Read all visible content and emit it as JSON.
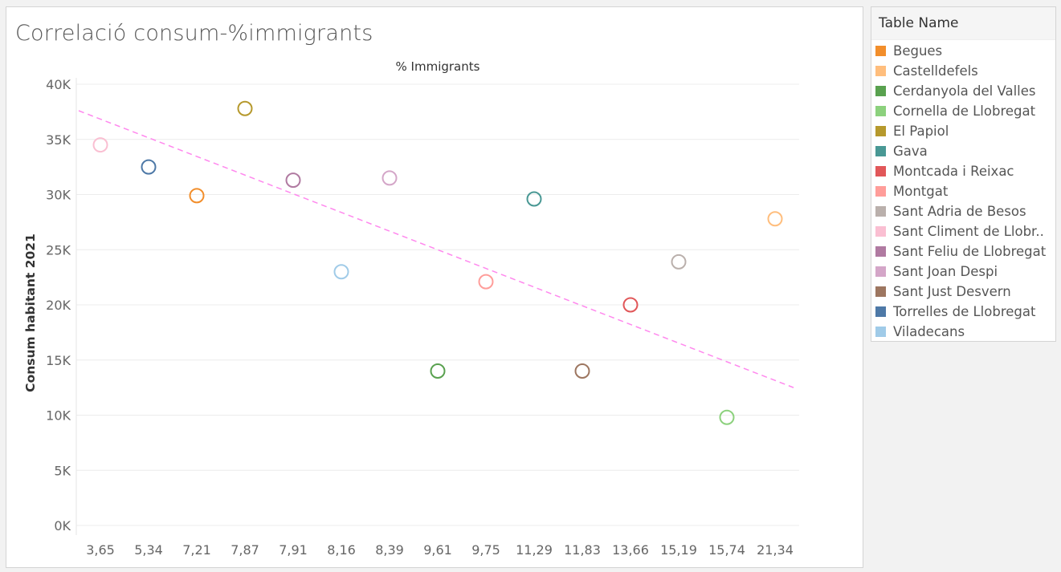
{
  "title": "Correlació consum-%immigrants",
  "legend": {
    "title": "Table Name",
    "items": [
      {
        "label": "Begues",
        "color": "#f28e2b"
      },
      {
        "label": "Castelldefels",
        "color": "#ffbe7d"
      },
      {
        "label": "Cerdanyola del Valles",
        "color": "#59a14f"
      },
      {
        "label": "Cornella de Llobregat",
        "color": "#8cd17d"
      },
      {
        "label": "El Papiol",
        "color": "#b6992d"
      },
      {
        "label": "Gava",
        "color": "#499894"
      },
      {
        "label": "Montcada i Reixac",
        "color": "#e15759"
      },
      {
        "label": "Montgat",
        "color": "#ff9d9a"
      },
      {
        "label": "Sant Adria de Besos",
        "color": "#bab0ac"
      },
      {
        "label": "Sant Climent de Llobr..",
        "color": "#fabfd2"
      },
      {
        "label": "Sant Feliu de Llobregat",
        "color": "#b07aa1"
      },
      {
        "label": "Sant Joan Despi",
        "color": "#d4a6c8"
      },
      {
        "label": "Sant Just Desvern",
        "color": "#9d7660"
      },
      {
        "label": "Torrelles de Llobregat",
        "color": "#4e79a7"
      },
      {
        "label": "Viladecans",
        "color": "#a0cbe8"
      }
    ]
  },
  "chart_data": {
    "type": "scatter",
    "x_header": "% Immigrants",
    "ylabel": "Consum habitant 2021",
    "categories": [
      "3,65",
      "5,34",
      "7,21",
      "7,87",
      "7,91",
      "8,16",
      "8,39",
      "9,61",
      "9,75",
      "11,29",
      "11,83",
      "13,66",
      "15,19",
      "15,74",
      "21,34"
    ],
    "y_ticks": [
      "0K",
      "5K",
      "10K",
      "15K",
      "20K",
      "25K",
      "30K",
      "35K",
      "40K"
    ],
    "ylim": [
      0,
      40000
    ],
    "points": [
      {
        "x": "3,65",
        "y": 34500,
        "name": "Sant Climent de Llobr..",
        "color": "#fabfd2"
      },
      {
        "x": "5,34",
        "y": 32500,
        "name": "Torrelles de Llobregat",
        "color": "#4e79a7"
      },
      {
        "x": "7,21",
        "y": 29900,
        "name": "Begues",
        "color": "#f28e2b"
      },
      {
        "x": "7,87",
        "y": 37800,
        "name": "El Papiol",
        "color": "#b6992d"
      },
      {
        "x": "7,91",
        "y": 31300,
        "name": "Sant Feliu de Llobregat",
        "color": "#b07aa1"
      },
      {
        "x": "8,16",
        "y": 23000,
        "name": "Viladecans",
        "color": "#a0cbe8"
      },
      {
        "x": "8,39",
        "y": 31500,
        "name": "Sant Joan Despi",
        "color": "#d4a6c8"
      },
      {
        "x": "9,61",
        "y": 14000,
        "name": "Cerdanyola del Valles",
        "color": "#59a14f"
      },
      {
        "x": "9,75",
        "y": 22100,
        "name": "Montgat",
        "color": "#ff9d9a"
      },
      {
        "x": "11,29",
        "y": 29600,
        "name": "Gava",
        "color": "#499894"
      },
      {
        "x": "11,83",
        "y": 14000,
        "name": "Sant Just Desvern",
        "color": "#9d7660"
      },
      {
        "x": "13,66",
        "y": 20000,
        "name": "Montcada i Reixac",
        "color": "#e15759"
      },
      {
        "x": "15,19",
        "y": 23900,
        "name": "Sant Adria de Besos",
        "color": "#bab0ac"
      },
      {
        "x": "15,74",
        "y": 9800,
        "name": "Cornella de Llobregat",
        "color": "#8cd17d"
      },
      {
        "x": "21,34",
        "y": 27800,
        "name": "Castelldefels",
        "color": "#ffbe7d"
      }
    ],
    "trend_line": {
      "color": "#ff88ee",
      "y_start": 37600,
      "y_end": 12500
    },
    "grid": true
  }
}
